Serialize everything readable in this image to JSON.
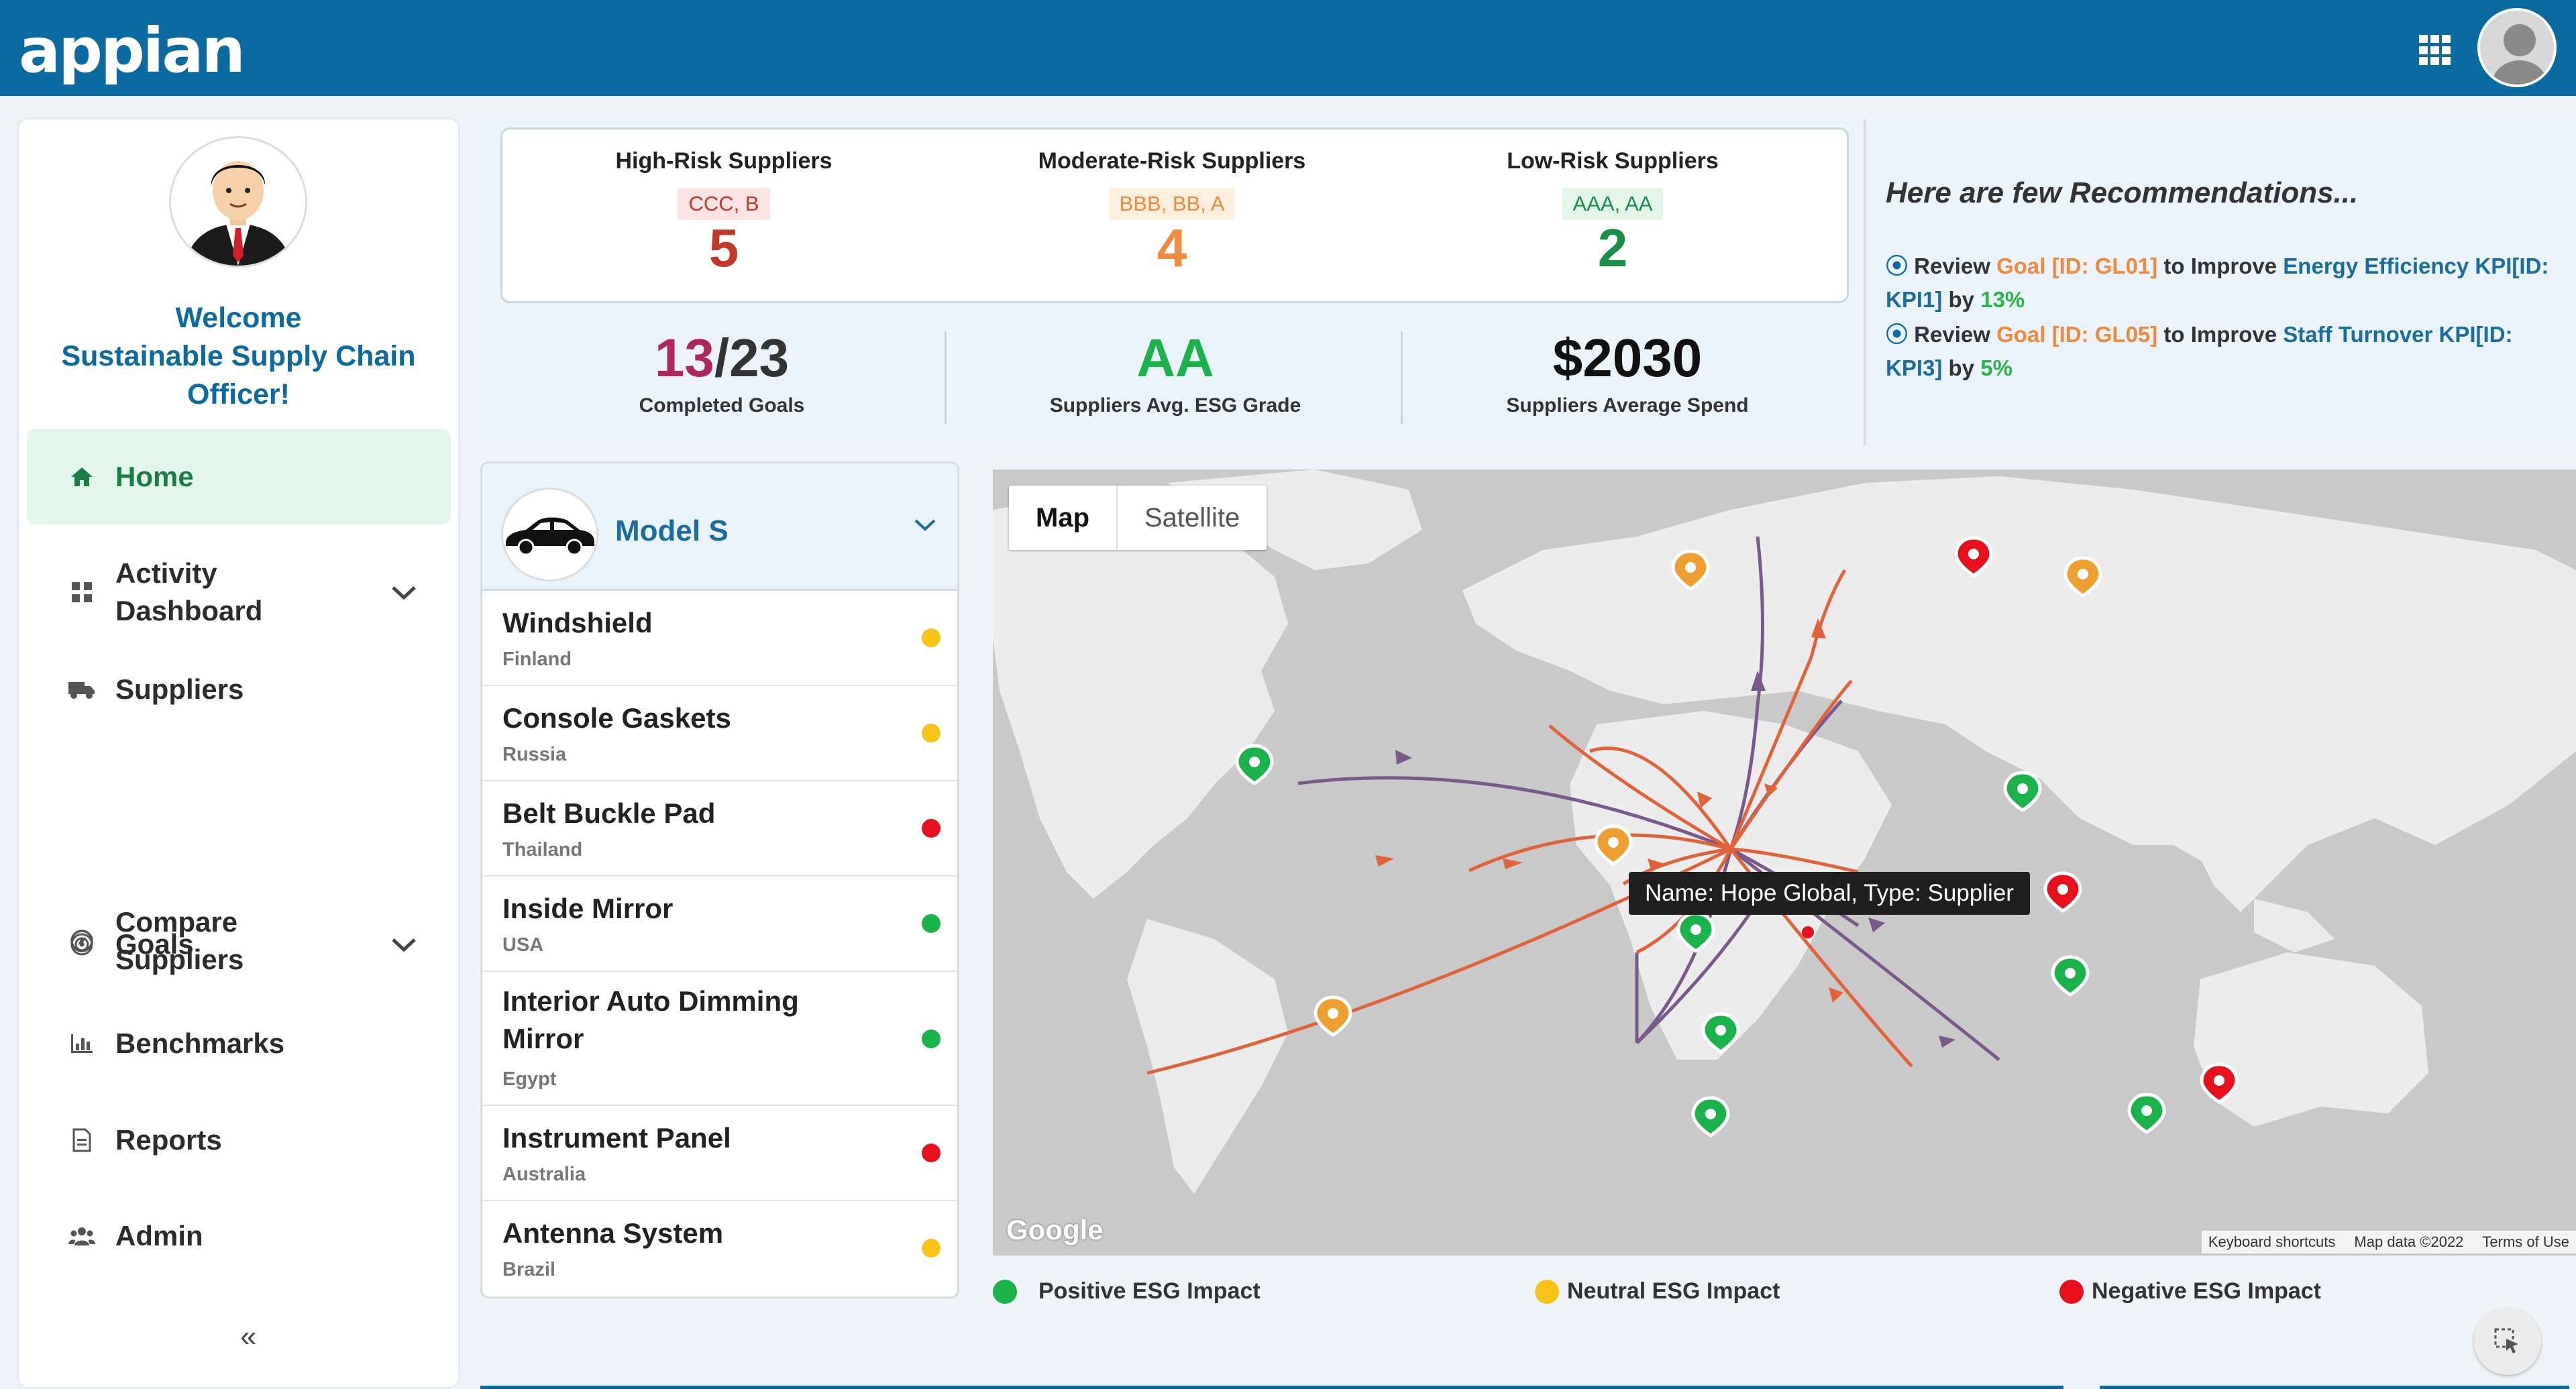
{
  "header": {
    "logo": "appian",
    "apps_icon": "apps-grid-icon",
    "avatar_icon": "user-avatar-icon"
  },
  "sidebar": {
    "welcome_lines": [
      "Welcome",
      "Sustainable Supply Chain",
      "Officer!"
    ],
    "nav": [
      {
        "label": "Home",
        "icon": "home-icon",
        "active": true
      },
      {
        "label_lines": [
          "Activity",
          "Dashboard"
        ],
        "icon": "dashboard-icon",
        "expand": true
      },
      {
        "label": "Suppliers",
        "icon": "truck-icon"
      },
      {
        "label_lines": [
          "Compare",
          "Suppliers"
        ],
        "icon": "compass-icon"
      },
      {
        "label": "Goals",
        "icon": "target-icon",
        "expand": true
      },
      {
        "label": "Benchmarks",
        "icon": "bar-chart-icon"
      },
      {
        "label": "Reports",
        "icon": "report-icon"
      },
      {
        "label": "Admin",
        "icon": "users-icon"
      }
    ],
    "collapse": "«"
  },
  "risk": [
    {
      "title": "High-Risk Suppliers",
      "grades": "CCC, B",
      "count": "5",
      "color": "#c0392b",
      "badge_bg": "#fde4e4",
      "badge_fg": "#c0392b"
    },
    {
      "title": "Moderate-Risk Suppliers",
      "grades": "BBB, BB, A",
      "count": "4",
      "color": "#f08a3c",
      "badge_bg": "#fdeedd",
      "badge_fg": "#f08a3c"
    },
    {
      "title": "Low-Risk Suppliers",
      "grades": "AAA, AA",
      "count": "2",
      "color": "#1a8f4a",
      "badge_bg": "#e3f4e8",
      "badge_fg": "#1a8f4a"
    }
  ],
  "kpis": {
    "goals_done": "13",
    "goals_total": "/23",
    "goals_label": "Completed Goals",
    "esg_grade": "AA",
    "esg_label": "Suppliers Avg. ESG Grade",
    "spend": "$2030",
    "spend_label": "Suppliers Average Spend"
  },
  "recommendations": {
    "title": "Here are few Recommendations...",
    "items": [
      {
        "prefix": "Review ",
        "goal": "Goal [ID: GL01]",
        "mid": " to Improve ",
        "kpi": "Energy Efficiency KPI[ID: KPI1]",
        "by": " by ",
        "pct": "13%"
      },
      {
        "prefix": "Review ",
        "goal": "Goal [ID: GL05]",
        "mid": " to Improve ",
        "kpi": "Staff Turnover KPI[ID: KPI3]",
        "by": " by ",
        "pct": "5%"
      }
    ]
  },
  "model": {
    "name": "Model S",
    "parts": [
      {
        "name": "Windshield",
        "country": "Finland",
        "status": "neutral"
      },
      {
        "name": "Console Gaskets",
        "country": "Russia",
        "status": "neutral"
      },
      {
        "name": "Belt Buckle Pad",
        "country": "Thailand",
        "status": "negative"
      },
      {
        "name": "Inside Mirror",
        "country": "USA",
        "status": "positive"
      },
      {
        "name": "Interior Auto Dimming Mirror",
        "country": "Egypt",
        "status": "positive"
      },
      {
        "name": "Instrument Panel",
        "country": "Australia",
        "status": "negative"
      },
      {
        "name": "Antenna System",
        "country": "Brazil",
        "status": "neutral"
      }
    ]
  },
  "map": {
    "tabs": [
      "Map",
      "Satellite"
    ],
    "tooltip": "Name: Hope Global, Type: Supplier",
    "google": "Google",
    "attribution": [
      "Keyboard shortcuts",
      "Map data ©2022",
      "Terms of Use"
    ]
  },
  "legend": [
    {
      "label": "Positive ESG Impact",
      "color": "#1ab34a"
    },
    {
      "label": "Neutral ESG Impact",
      "color": "#f5c518"
    },
    {
      "label": "Negative ESG Impact",
      "color": "#e8101c"
    }
  ],
  "colors": {
    "positive": "#1ab34a",
    "neutral": "#f5c518",
    "negative": "#e8101c",
    "brand": "#0b6aa0"
  }
}
